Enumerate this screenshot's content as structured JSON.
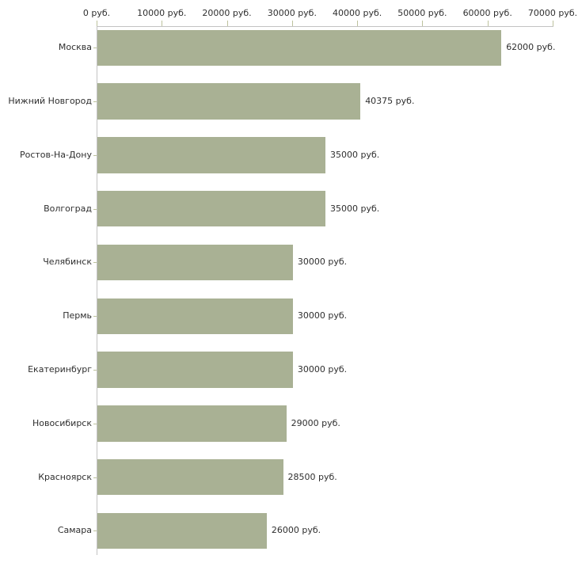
{
  "chart_data": {
    "type": "bar",
    "orientation": "horizontal",
    "title": "",
    "xlabel": "",
    "ylabel": "",
    "unit": "руб.",
    "categories": [
      "Москва",
      "Нижний Новгород",
      "Ростов-На-Дону",
      "Волгоград",
      "Челябинск",
      "Пермь",
      "Екатеринбург",
      "Новосибирск",
      "Красноярск",
      "Самара"
    ],
    "values": [
      62000,
      40375,
      35000,
      35000,
      30000,
      30000,
      30000,
      29000,
      28500,
      26000
    ],
    "value_labels": [
      "62000 руб.",
      "40375 руб.",
      "35000 руб.",
      "35000 руб.",
      "30000 руб.",
      "30000 руб.",
      "30000 руб.",
      "29000 руб.",
      "28500 руб.",
      "26000 руб."
    ],
    "xlim": [
      0,
      70000
    ],
    "x_ticks": [
      0,
      10000,
      20000,
      30000,
      40000,
      50000,
      60000,
      70000
    ],
    "x_tick_labels": [
      "0 руб.",
      "10000 руб.",
      "20000 руб.",
      "30000 руб.",
      "40000 руб.",
      "50000 руб.",
      "60000 руб.",
      "70000 руб."
    ],
    "grid": false,
    "legend": false,
    "colors": {
      "bar": "#a9b194",
      "axis": "#c3c3c3",
      "tick": "#bdc29d",
      "text": "#2f2f2f",
      "background": "#ffffff"
    }
  }
}
